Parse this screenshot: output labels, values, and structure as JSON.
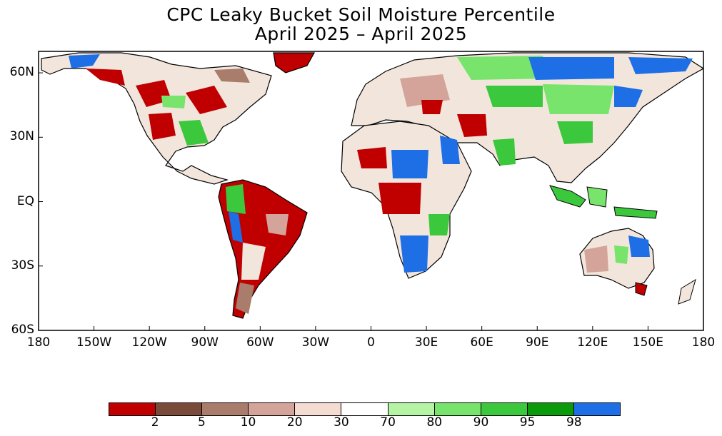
{
  "title": "CPC Leaky Bucket Soil Moisture Percentile",
  "subtitle": "April 2025 – April 2025",
  "map": {
    "projection": "equirectangular",
    "lon_range": [
      -180,
      180
    ],
    "lat_range": [
      -60,
      70
    ],
    "y_ticks": [
      {
        "label": "60N",
        "lat": 60
      },
      {
        "label": "30N",
        "lat": 30
      },
      {
        "label": "EQ",
        "lat": 0
      },
      {
        "label": "30S",
        "lat": -30
      },
      {
        "label": "60S",
        "lat": -60
      }
    ],
    "x_ticks": [
      {
        "label": "180",
        "lon": -180
      },
      {
        "label": "150W",
        "lon": -150
      },
      {
        "label": "120W",
        "lon": -120
      },
      {
        "label": "90W",
        "lon": -90
      },
      {
        "label": "60W",
        "lon": -60
      },
      {
        "label": "30W",
        "lon": -30
      },
      {
        "label": "0",
        "lon": 0
      },
      {
        "label": "30E",
        "lon": 30
      },
      {
        "label": "60E",
        "lon": 60
      },
      {
        "label": "90E",
        "lon": 90
      },
      {
        "label": "120E",
        "lon": 120
      },
      {
        "label": "150E",
        "lon": 150
      },
      {
        "label": "180",
        "lon": 180
      }
    ]
  },
  "legend": {
    "colors": [
      "#c00000",
      "#7a4a3a",
      "#a97c6c",
      "#d4a49a",
      "#f4dcd2",
      "#ffffff",
      "#b4f4a4",
      "#78e46c",
      "#3cc83c",
      "#0a9a0a",
      "#1e6ee6"
    ],
    "labels": [
      "2",
      "5",
      "10",
      "20",
      "30",
      "70",
      "80",
      "90",
      "95",
      "98"
    ]
  }
}
